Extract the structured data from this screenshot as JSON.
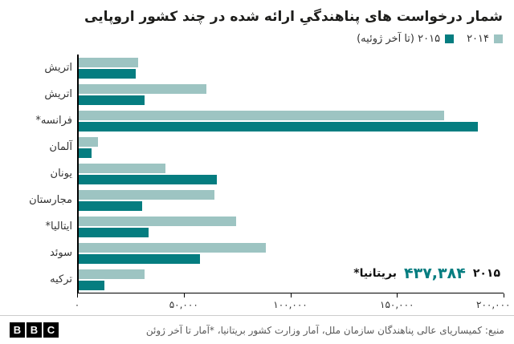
{
  "title": "شمار درخواست های پناهندگیِ ارائه شده در چند کشور اروپایی",
  "legend": {
    "items": [
      {
        "label": "۲۰۱۴",
        "color": "#9dc4c2"
      },
      {
        "label": "۲۰۱۵ (تا آخر ژوئیه)",
        "color": "#057d80"
      }
    ]
  },
  "chart_data": {
    "type": "bar",
    "orientation": "horizontal",
    "title": "شمار درخواست های پناهندگیِ ارائه شده در چند کشور اروپایی",
    "categories": [
      "اتریش",
      "اتریش",
      "فرانسه*",
      "آلمان",
      "یونان",
      "مجارستان",
      "ایتالیا*",
      "سوئد",
      "ترکیه"
    ],
    "series": [
      {
        "name": "۲۰۱۴",
        "color": "#9dc4c2",
        "values": [
          28000,
          60000,
          172000,
          9000,
          41000,
          64000,
          74000,
          88000,
          31000
        ]
      },
      {
        "name": "۲۰۱۵ (تا آخر ژوئیه)",
        "color": "#057d80",
        "values": [
          27000,
          31000,
          188000,
          6000,
          65000,
          30000,
          33000,
          57000,
          12000
        ]
      }
    ],
    "xlim": [
      0,
      200000
    ],
    "x_ticks": [
      "۰",
      "۵۰,۰۰۰",
      "۱۰۰,۰۰۰",
      "۱۵۰,۰۰۰",
      "۲۰۰,۰۰۰"
    ],
    "grid": false,
    "legend_position": "top-right",
    "bar_direction": "left-to-right"
  },
  "annotation": {
    "country": "بریتانیا*",
    "value": "۴۳۷,۳۸۴",
    "year": "۲۰۱۵",
    "value_color": "#057d80"
  },
  "footer": {
    "source": "منبع: کمیساریای عالی پناهندگان سازمان ملل، آمار وزارت کشور بریتانیا، *آمار تا آخر ژوئن",
    "logo": [
      "B",
      "B",
      "C"
    ]
  },
  "colors": {
    "dark_teal": "#057d80",
    "light_teal": "#9dc4c2",
    "axis": "#000000",
    "text": "#333333",
    "footer_text": "#5a5a5a"
  }
}
